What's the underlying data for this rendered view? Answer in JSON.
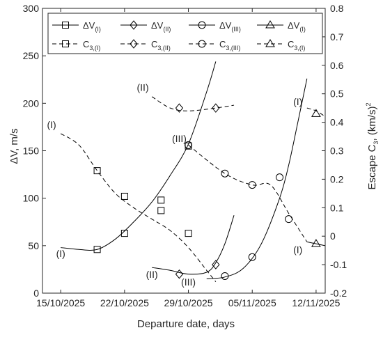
{
  "chart_data": {
    "type": "line",
    "xlabel": "Departure date, days",
    "ylabel_left": "ΔV, m/s",
    "ylabel_right_main": "Escape C",
    "ylabel_right_sub": "3",
    "ylabel_right_rest": ", (km/s)",
    "ylabel_right_sup": "2",
    "x_domain": [
      "2025-10-15",
      "2025-11-13"
    ],
    "ylim_left": [
      0,
      300
    ],
    "ylim_right": [
      -0.2,
      0.8
    ],
    "grid": false,
    "legend_placement": "top",
    "x_ticks": [
      {
        "date": "2025-10-15",
        "label": "15/10/2025"
      },
      {
        "date": "2025-10-22",
        "label": "22/10/2025"
      },
      {
        "date": "2025-10-29",
        "label": "29/10/2025"
      },
      {
        "date": "2025-11-05",
        "label": "05/11/2025"
      },
      {
        "date": "2025-11-12",
        "label": "12/11/2025"
      }
    ],
    "y_ticks_left": [
      "0",
      "50",
      "100",
      "150",
      "200",
      "250",
      "300"
    ],
    "y_ticks_right": [
      "-0.2",
      "-0.1",
      "0",
      "0.1",
      "0.2",
      "0.3",
      "0.4",
      "0.5",
      "0.6",
      "0.7",
      "0.8"
    ],
    "legend": [
      {
        "main": "ΔV",
        "sub": "(I)",
        "marker": "square",
        "dash": false
      },
      {
        "main": "ΔV",
        "sub": "(II)",
        "marker": "diamond",
        "dash": false
      },
      {
        "main": "ΔV",
        "sub": "(III)",
        "marker": "circle",
        "dash": false
      },
      {
        "main": "ΔV",
        "sub": "(I)",
        "marker": "triangle",
        "dash": false
      },
      {
        "main": "C",
        "sub": "3,(I)",
        "marker": "square",
        "dash": true
      },
      {
        "main": "C",
        "sub": "3,(II)",
        "marker": "diamond",
        "dash": true
      },
      {
        "main": "C",
        "sub": "3,(III)",
        "marker": "circle",
        "dash": true
      },
      {
        "main": "C",
        "sub": "3,(I)",
        "marker": "triangle",
        "dash": true
      }
    ],
    "series": [
      {
        "key": "dv1",
        "axis": "left",
        "dash": false,
        "marker": "square",
        "x": [
          "2025-10-15",
          "2025-10-17",
          "2025-10-19",
          "2025-10-21",
          "2025-10-23",
          "2025-10-25",
          "2025-10-27",
          "2025-10-29",
          "2025-10-31",
          "2025-11-01"
        ],
        "y": [
          48,
          46,
          46,
          57,
          75,
          96,
          124,
          157,
          212,
          244
        ],
        "markers_x": [
          "2025-10-19",
          "2025-10-22",
          "2025-10-26",
          "2025-10-29"
        ],
        "markers_y": [
          46,
          63,
          98,
          155
        ]
      },
      {
        "key": "dv2",
        "axis": "left",
        "dash": false,
        "marker": "diamond",
        "x": [
          "2025-10-25",
          "2025-10-27",
          "2025-10-29",
          "2025-10-31",
          "2025-11-01",
          "2025-11-02",
          "2025-11-03"
        ],
        "y": [
          27,
          24,
          20,
          22,
          32,
          52,
          82
        ],
        "markers_x": [
          "2025-10-28",
          "2025-11-01"
        ],
        "markers_y": [
          20,
          30
        ]
      },
      {
        "key": "dv3",
        "axis": "left",
        "dash": false,
        "marker": "circle",
        "x": [
          "2025-10-31",
          "2025-11-02",
          "2025-11-04",
          "2025-11-06",
          "2025-11-08",
          "2025-11-09",
          "2025-11-10",
          "2025-11-11"
        ],
        "y": [
          15,
          17,
          26,
          52,
          100,
          135,
          180,
          226
        ],
        "markers_x": [
          "2025-11-02",
          "2025-11-05",
          "2025-11-08"
        ],
        "markers_y": [
          18,
          38,
          122
        ]
      },
      {
        "key": "dv4",
        "axis": "left",
        "dash": false,
        "marker": "triangle",
        "x": [
          "2025-11-11",
          "2025-11-12",
          "2025-11-13"
        ],
        "y": [
          54,
          52,
          50
        ],
        "markers_x": [
          "2025-11-12"
        ],
        "markers_y": [
          52
        ]
      },
      {
        "key": "c1",
        "axis": "right",
        "dash": true,
        "marker": "square",
        "x": [
          "2025-10-15",
          "2025-10-17",
          "2025-10-19",
          "2025-10-21",
          "2025-10-23",
          "2025-10-25",
          "2025-10-27",
          "2025-10-29",
          "2025-10-31",
          "2025-11-01"
        ],
        "y": [
          0.36,
          0.32,
          0.23,
          0.15,
          0.1,
          0.06,
          0.02,
          -0.04,
          -0.12,
          -0.16
        ],
        "markers_x": [
          "2025-10-19",
          "2025-10-22",
          "2025-10-26",
          "2025-10-29"
        ],
        "markers_y": [
          0.23,
          0.14,
          0.09,
          0.01
        ]
      },
      {
        "key": "c2",
        "axis": "right",
        "dash": true,
        "marker": "diamond",
        "x": [
          "2025-10-25",
          "2025-10-27",
          "2025-10-29",
          "2025-11-01",
          "2025-11-03"
        ],
        "y": [
          0.49,
          0.45,
          0.44,
          0.45,
          0.46
        ],
        "markers_x": [
          "2025-10-28",
          "2025-11-01"
        ],
        "markers_y": [
          0.45,
          0.45
        ]
      },
      {
        "key": "c3",
        "axis": "right",
        "dash": true,
        "marker": "circle",
        "x": [
          "2025-10-29",
          "2025-11-02",
          "2025-11-05",
          "2025-11-07",
          "2025-11-09",
          "2025-11-11"
        ],
        "y": [
          0.32,
          0.22,
          0.18,
          0.18,
          0.08,
          -0.02
        ],
        "markers_x": [
          "2025-10-29",
          "2025-11-02",
          "2025-11-05",
          "2025-11-09"
        ],
        "markers_y": [
          0.32,
          0.22,
          0.18,
          0.06
        ]
      },
      {
        "key": "c4",
        "axis": "right",
        "dash": true,
        "marker": "triangle",
        "x": [
          "2025-11-11",
          "2025-11-12",
          "2025-11-13"
        ],
        "y": [
          0.45,
          0.44,
          0.42
        ],
        "markers_x": [
          "2025-11-12"
        ],
        "markers_y": [
          0.43
        ]
      }
    ],
    "annotations": [
      {
        "text": "(I)",
        "x": "2025-10-14",
        "axis": "right",
        "y": 0.38
      },
      {
        "text": "(II)",
        "x": "2025-10-24",
        "axis": "right",
        "y": 0.51
      },
      {
        "text": "(III)",
        "x": "2025-10-28",
        "axis": "right",
        "y": 0.33
      },
      {
        "text": "(I)",
        "x": "2025-11-10",
        "axis": "right",
        "y": 0.46
      },
      {
        "text": "(I)",
        "x": "2025-10-15",
        "axis": "left",
        "y": 38
      },
      {
        "text": "(II)",
        "x": "2025-10-25",
        "axis": "left",
        "y": 16
      },
      {
        "text": "(III)",
        "x": "2025-10-29",
        "axis": "left",
        "y": 8
      },
      {
        "text": "(I)",
        "x": "2025-11-10",
        "axis": "left",
        "y": 42
      }
    ]
  }
}
